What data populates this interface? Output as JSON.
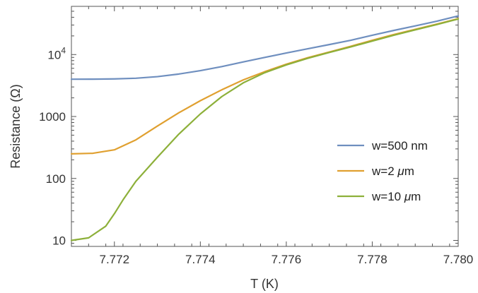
{
  "chart_data": {
    "type": "line",
    "title": "",
    "xlabel": "T (K)",
    "ylabel": "Resistance (Ω)",
    "xlim": [
      7.771,
      7.78
    ],
    "ylim": [
      8,
      60000
    ],
    "yscale": "log",
    "x_ticks": [
      7.772,
      7.774,
      7.776,
      7.778,
      7.78
    ],
    "x_tick_labels": [
      "7.772",
      "7.774",
      "7.776",
      "7.778",
      "7.780"
    ],
    "y_ticks": [
      {
        "value": 10,
        "label": "10"
      },
      {
        "value": 100,
        "label": "100"
      },
      {
        "value": 1000,
        "label": "1000"
      },
      {
        "value": 10000,
        "label": "10",
        "exponent": "4"
      }
    ],
    "grid": false,
    "legend_position": "right",
    "series": [
      {
        "name": "w=500 nm",
        "name_parts": [
          "w=500 nm"
        ],
        "color": "#6f8fbf",
        "x": [
          7.771,
          7.7715,
          7.772,
          7.7725,
          7.773,
          7.7735,
          7.774,
          7.7745,
          7.775,
          7.7755,
          7.776,
          7.7765,
          7.777,
          7.7775,
          7.778,
          7.7785,
          7.779,
          7.7795,
          7.78
        ],
        "y": [
          4000,
          4010,
          4050,
          4150,
          4400,
          4850,
          5500,
          6400,
          7600,
          9000,
          10600,
          12400,
          14500,
          17000,
          20500,
          24500,
          29000,
          34500,
          42000
        ]
      },
      {
        "name": "w=2 μm",
        "name_parts": [
          "w=2 ",
          "μ",
          "m"
        ],
        "color": "#e0a030",
        "x": [
          7.771,
          7.7715,
          7.772,
          7.7725,
          7.773,
          7.7735,
          7.774,
          7.7745,
          7.775,
          7.7755,
          7.776,
          7.7765,
          7.777,
          7.7775,
          7.778,
          7.7785,
          7.779,
          7.7795,
          7.78
        ],
        "y": [
          250,
          255,
          290,
          420,
          700,
          1150,
          1800,
          2700,
          3900,
          5300,
          7000,
          8900,
          11000,
          13600,
          17000,
          21000,
          25500,
          31000,
          38000
        ]
      },
      {
        "name": "w=10 μm",
        "name_parts": [
          "w=10 ",
          "μ",
          "m"
        ],
        "color": "#8db03a",
        "x": [
          7.771,
          7.7714,
          7.7718,
          7.772,
          7.7722,
          7.7725,
          7.773,
          7.7735,
          7.774,
          7.7745,
          7.775,
          7.7755,
          7.776,
          7.7765,
          7.777,
          7.7775,
          7.778,
          7.7785,
          7.779,
          7.7795,
          7.78
        ],
        "y": [
          10,
          11,
          17,
          27,
          45,
          90,
          220,
          520,
          1100,
          2100,
          3500,
          5100,
          6800,
          8700,
          10800,
          13300,
          16500,
          20500,
          25000,
          30500,
          37500
        ]
      }
    ]
  }
}
